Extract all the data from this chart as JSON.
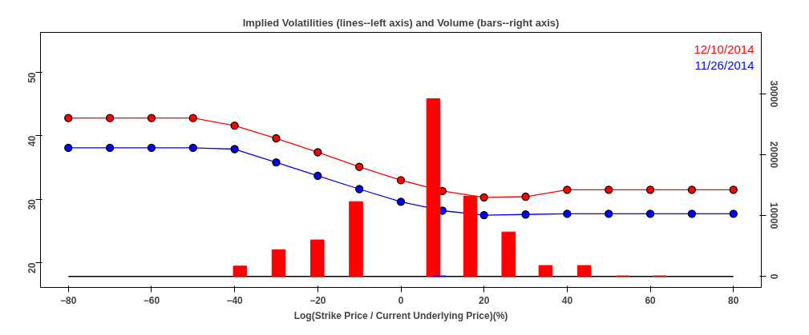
{
  "chart_data": {
    "type": "line",
    "title": "Implied Volatilities (lines--left axis) and Volume (bars--right axis)",
    "xlabel": "Log(Strike Price / Current Underlying Price)(%)",
    "x": [
      -80,
      -70,
      -60,
      -50,
      -40,
      -30,
      -20,
      -10,
      0,
      10,
      20,
      30,
      40,
      50,
      60,
      70,
      80
    ],
    "series": [
      {
        "name": "12/10/2014",
        "color": "#ff0000",
        "values": [
          42.8,
          42.8,
          42.8,
          42.8,
          41.6,
          39.6,
          37.4,
          35.1,
          33.0,
          31.3,
          30.3,
          30.4,
          31.5,
          31.5,
          31.5,
          31.5,
          31.5
        ]
      },
      {
        "name": "11/26/2014",
        "color": "#0000ff",
        "values": [
          38.1,
          38.1,
          38.1,
          38.1,
          37.9,
          35.8,
          33.7,
          31.6,
          29.6,
          28.2,
          27.5,
          27.6,
          27.7,
          27.7,
          27.7,
          27.7,
          27.7
        ]
      },
      {
        "type": "bar",
        "axis": "y2",
        "color": "#ff0000",
        "x": [
          -38.7,
          -29.4,
          -20.1,
          -10.8,
          7.8,
          16.7,
          25.9,
          34.8,
          44.1,
          53.4,
          62.3
        ],
        "values": [
          1700,
          4400,
          6000,
          12300,
          29200,
          13200,
          7300,
          1800,
          1800,
          100,
          100
        ]
      },
      {
        "type": "bar",
        "axis": "y2",
        "color": "#0000ff",
        "x": [
          9.3
        ],
        "values": [
          100
        ]
      }
    ],
    "xlim": [
      -86.7,
      86.7
    ],
    "xticks": [
      -80,
      -60,
      -40,
      -20,
      0,
      20,
      40,
      60,
      80
    ],
    "ylim": [
      16.1,
      56.3
    ],
    "yticks": [
      20,
      30,
      40,
      50
    ],
    "y2lim": [
      -1800,
      40100
    ],
    "y2ticks": [
      0,
      10000,
      20000,
      30000
    ],
    "ref_lines": [
      {
        "axis": "y2",
        "value": 0,
        "color": "#000000"
      }
    ],
    "marker": "circle",
    "legend": "top right",
    "grid": false
  }
}
